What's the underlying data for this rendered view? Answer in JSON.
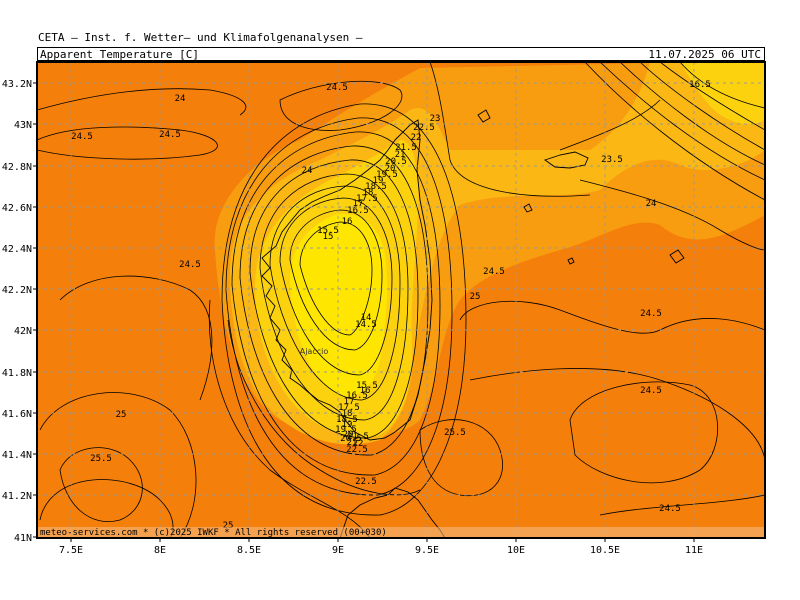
{
  "header": {
    "source": "CETA – Inst. f. Wetter– und Klimafolgenanalysen –",
    "variable": "Apparent_Temperature_[C]",
    "valid_time": "11.07.2025 06 UTC"
  },
  "footer": {
    "credit": "meteo-services.com * (c)2025 IWKF * All rights reserved (00+030)"
  },
  "axes": {
    "lat_labels": [
      "43.2N",
      "43N",
      "42.8N",
      "42.6N",
      "42.4N",
      "42.2N",
      "42N",
      "41.8N",
      "41.6N",
      "41.4N",
      "41.2N",
      "41N"
    ],
    "lon_labels": [
      "7.5E",
      "8E",
      "8.5E",
      "9E",
      "9.5E",
      "10E",
      "10.5E",
      "11E"
    ]
  },
  "place_labels": [
    "Ajaccio"
  ],
  "contour_labels": [
    {
      "text": "24.5"
    },
    {
      "text": "24"
    },
    {
      "text": "24.5"
    },
    {
      "text": "24.5"
    },
    {
      "text": "16.5"
    },
    {
      "text": "23"
    },
    {
      "text": "22.5"
    },
    {
      "text": "22"
    },
    {
      "text": "21.5"
    },
    {
      "text": "21"
    },
    {
      "text": "20.5"
    },
    {
      "text": "20"
    },
    {
      "text": "19.5"
    },
    {
      "text": "19"
    },
    {
      "text": "18.5"
    },
    {
      "text": "18"
    },
    {
      "text": "17.5"
    },
    {
      "text": "17"
    },
    {
      "text": "16.5"
    },
    {
      "text": "16"
    },
    {
      "text": "15.5"
    },
    {
      "text": "15"
    },
    {
      "text": "24"
    },
    {
      "text": "23.5"
    },
    {
      "text": "24"
    },
    {
      "text": "24.5"
    },
    {
      "text": "24.5"
    },
    {
      "text": "25"
    },
    {
      "text": "14"
    },
    {
      "text": "14.5"
    },
    {
      "text": "24.5"
    },
    {
      "text": "15.5"
    },
    {
      "text": "16"
    },
    {
      "text": "16.5"
    },
    {
      "text": "17"
    },
    {
      "text": "17.5"
    },
    {
      "text": "18"
    },
    {
      "text": "18.5"
    },
    {
      "text": "19"
    },
    {
      "text": "19.5"
    },
    {
      "text": "20"
    },
    {
      "text": "20.5"
    },
    {
      "text": "21"
    },
    {
      "text": "21.5"
    },
    {
      "text": "22"
    },
    {
      "text": "22.5"
    },
    {
      "text": "24.5"
    },
    {
      "text": "25"
    },
    {
      "text": "25.5"
    },
    {
      "text": "25.5"
    },
    {
      "text": "22.5"
    },
    {
      "text": "24.5"
    },
    {
      "text": "25"
    }
  ],
  "colors": {
    "band_25": "#f47f0a",
    "band_24": "#f89c10",
    "band_23": "#fbb713",
    "band_21": "#fcd20f",
    "band_high": "#ffe600"
  }
}
